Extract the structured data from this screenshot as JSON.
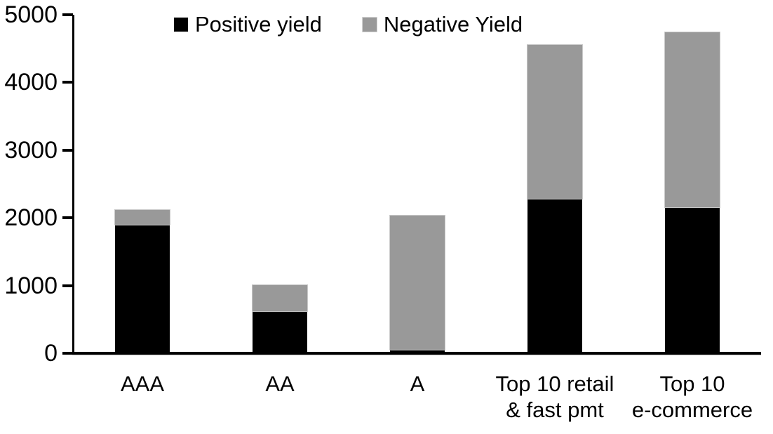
{
  "chart_data": {
    "type": "bar",
    "stacked": true,
    "title": "",
    "xlabel": "",
    "ylabel": "",
    "categories": [
      "AAA",
      "AA",
      "A",
      "Top 10 retail\n& fast pmt",
      "Top 10\ne-commerce"
    ],
    "series": [
      {
        "name": "Positive yield",
        "color": "#000000",
        "values": [
          1900,
          625,
          55,
          2285,
          2155
        ]
      },
      {
        "name": "Negative Yield",
        "color": "#999999",
        "values": [
          220,
          380,
          1980,
          2265,
          2590
        ]
      }
    ],
    "totals": [
      2120,
      1005,
      2035,
      4550,
      4745
    ],
    "ylim": [
      0,
      5000
    ],
    "yticks": [
      0,
      1000,
      2000,
      3000,
      4000,
      5000
    ],
    "grid": false,
    "legend_position": "top",
    "axis_color": "#000000",
    "background_color": "#ffffff"
  }
}
